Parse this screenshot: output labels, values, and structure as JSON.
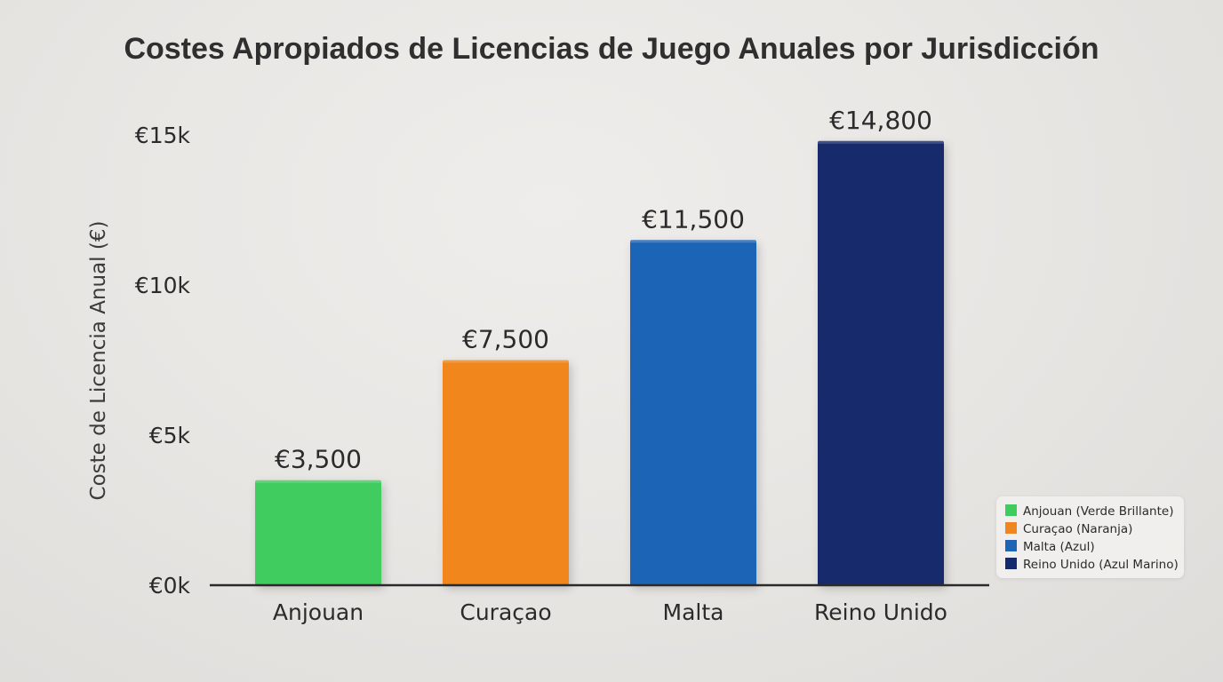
{
  "chart_data": {
    "type": "bar",
    "title": "Costes Apropiados de Licencias de Juego Anuales por Jurisdicción",
    "xlabel": "",
    "ylabel": "Coste de Licencia Anual (€)",
    "ylim": [
      0,
      15000
    ],
    "yticks": [
      {
        "value": 0,
        "label": "€0k"
      },
      {
        "value": 5000,
        "label": "€5k"
      },
      {
        "value": 10000,
        "label": "€10k"
      },
      {
        "value": 15000,
        "label": "€15k"
      }
    ],
    "categories": [
      "Anjouan",
      "Curaçao",
      "Malta",
      "Reino Unido"
    ],
    "values": [
      3500,
      7500,
      11500,
      14800
    ],
    "data_labels": [
      "€3,500",
      "€7,500",
      "€11,500",
      "€14,800"
    ],
    "colors": [
      "#3fcc5e",
      "#f0861f",
      "#1f65b6",
      "#142a6c"
    ],
    "grid": false,
    "legend": {
      "placement": "bottom-right",
      "entries": [
        "Anjouan (Verde Brillante)",
        "Curaçao (Naranja)",
        "Malta (Azul)",
        "Reino Unido (Azul Marino)"
      ]
    }
  }
}
